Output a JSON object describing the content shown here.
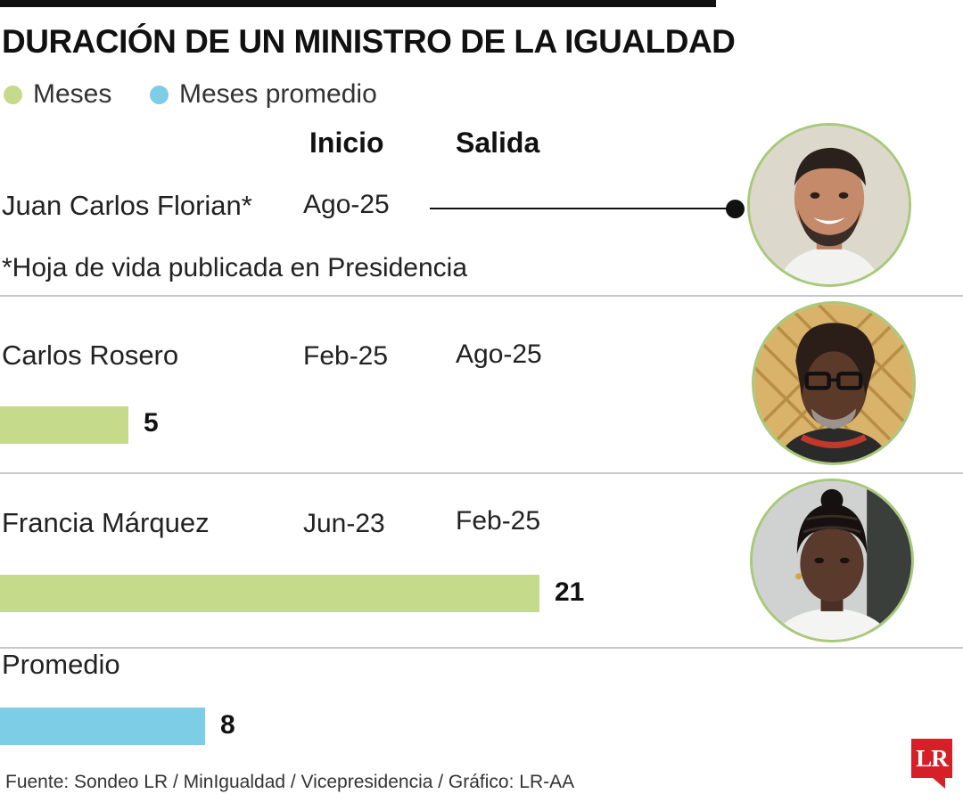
{
  "title": "DURACIÓN DE UN MINISTRO DE LA IGUALDAD",
  "legend": [
    {
      "label": "Meses",
      "color": "#c5da8b"
    },
    {
      "label": "Meses promedio",
      "color": "#7ecde6"
    }
  ],
  "columns": {
    "start": "Inicio",
    "end": "Salida"
  },
  "note": "*Hoja de vida publicada en Presidencia",
  "source": "Fuente: Sondeo LR / MinIgualdad / Vicepresidencia / Gráfico: LR-AA",
  "logo": "LR",
  "chart_data": {
    "type": "bar",
    "title": "DURACIÓN DE UN MINISTRO DE LA IGUALDAD",
    "series": [
      {
        "name": "Meses",
        "color": "#c5da8b"
      },
      {
        "name": "Meses promedio",
        "color": "#7ecde6"
      }
    ],
    "rows": [
      {
        "name": "Juan Carlos Florian*",
        "start": "Ago-25",
        "end": "",
        "months": null,
        "series": "Meses",
        "ongoing": true,
        "avatar": "man-smiling-portrait"
      },
      {
        "name": "Carlos Rosero",
        "start": "Feb-25",
        "end": "Ago-25",
        "months": 5,
        "series": "Meses",
        "avatar": "man-with-glasses-portrait"
      },
      {
        "name": "Francia Márquez",
        "start": "Jun-23",
        "end": "Feb-25",
        "months": 21,
        "series": "Meses",
        "avatar": "woman-braids-portrait"
      },
      {
        "name": "Promedio",
        "start": "",
        "end": "",
        "months": 8,
        "series": "Meses promedio"
      }
    ],
    "xlim": [
      0,
      21
    ]
  }
}
